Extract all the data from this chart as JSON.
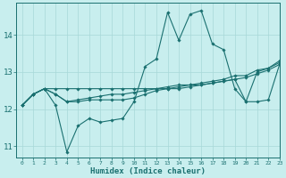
{
  "xlabel": "Humidex (Indice chaleur)",
  "xlim": [
    -0.5,
    23
  ],
  "ylim": [
    10.7,
    14.85
  ],
  "yticks": [
    11,
    12,
    13,
    14
  ],
  "xticks": [
    0,
    1,
    2,
    3,
    4,
    5,
    6,
    7,
    8,
    9,
    10,
    11,
    12,
    13,
    14,
    15,
    16,
    17,
    18,
    19,
    20,
    21,
    22,
    23
  ],
  "bg_color": "#c8eeee",
  "grid_color": "#a8d8d8",
  "line_color": "#1a7070",
  "lines": [
    {
      "x": [
        0,
        1,
        2,
        3,
        4,
        5,
        6,
        7,
        8,
        9,
        10,
        11,
        12,
        13,
        14,
        15,
        16,
        17,
        18,
        19,
        20,
        21,
        22,
        23
      ],
      "y": [
        12.1,
        12.4,
        12.55,
        12.1,
        10.85,
        11.55,
        11.75,
        11.65,
        11.7,
        11.75,
        12.2,
        13.15,
        13.35,
        14.6,
        13.85,
        14.55,
        14.65,
        13.75,
        13.6,
        12.55,
        12.2,
        13.0,
        13.1,
        13.3
      ]
    },
    {
      "x": [
        0,
        1,
        2,
        3,
        4,
        5,
        6,
        7,
        8,
        9,
        10,
        11,
        12,
        13,
        14,
        15,
        16,
        17,
        18,
        19,
        20,
        21,
        22,
        23
      ],
      "y": [
        12.1,
        12.4,
        12.55,
        12.55,
        12.55,
        12.55,
        12.55,
        12.55,
        12.55,
        12.55,
        12.55,
        12.55,
        12.55,
        12.6,
        12.65,
        12.65,
        12.65,
        12.7,
        12.75,
        12.8,
        12.85,
        12.95,
        13.05,
        13.2
      ]
    },
    {
      "x": [
        0,
        1,
        2,
        3,
        4,
        5,
        6,
        7,
        8,
        9,
        10,
        11,
        12,
        13,
        14,
        15,
        16,
        17,
        18,
        19,
        20,
        21,
        22,
        23
      ],
      "y": [
        12.1,
        12.4,
        12.55,
        12.4,
        12.2,
        12.2,
        12.25,
        12.25,
        12.25,
        12.25,
        12.3,
        12.4,
        12.5,
        12.55,
        12.55,
        12.6,
        12.65,
        12.7,
        12.75,
        12.8,
        12.2,
        12.2,
        12.25,
        13.2
      ]
    },
    {
      "x": [
        0,
        1,
        2,
        3,
        4,
        5,
        6,
        7,
        8,
        9,
        10,
        11,
        12,
        13,
        14,
        15,
        16,
        17,
        18,
        19,
        20,
        21,
        22,
        23
      ],
      "y": [
        12.1,
        12.4,
        12.55,
        12.4,
        12.2,
        12.25,
        12.3,
        12.35,
        12.4,
        12.4,
        12.45,
        12.5,
        12.55,
        12.55,
        12.6,
        12.65,
        12.7,
        12.75,
        12.8,
        12.9,
        12.9,
        13.05,
        13.1,
        13.25
      ]
    }
  ]
}
